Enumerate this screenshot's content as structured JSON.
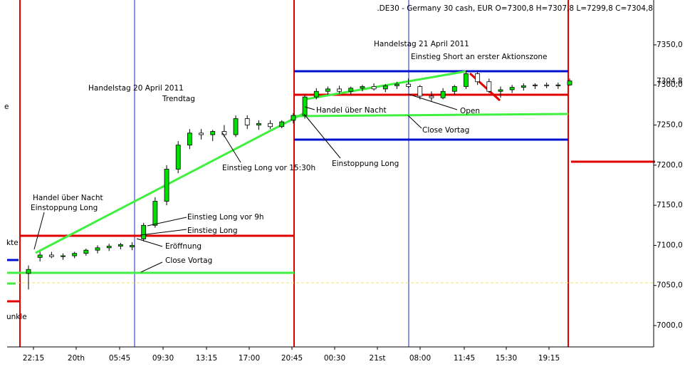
{
  "chart_data": {
    "type": "candlestick",
    "title": ".DE30 - Germany 30 cash, EUR O=7300,8 H=7307,8 L=7299,8 C=7304,8",
    "ylim": [
      6973.4,
      7405.9
    ],
    "yticks": [
      {
        "value": 7000,
        "label": "7000,0"
      },
      {
        "value": 7050,
        "label": "7050,0"
      },
      {
        "value": 7100,
        "label": "7100,0"
      },
      {
        "value": 7150,
        "label": "7150,0"
      },
      {
        "value": 7200,
        "label": "7200,0"
      },
      {
        "value": 7250,
        "label": "7250,0"
      },
      {
        "value": 7300,
        "label": "7300,0"
      },
      {
        "value": 7350,
        "label": "7350,0"
      }
    ],
    "last_price": {
      "value": 7304.8,
      "label": "7304,8"
    },
    "xtick_labels": [
      "22:15",
      "20th",
      "05:45",
      "09:30",
      "13:15",
      "17:00",
      "20:45",
      "00:30",
      "21st",
      "08:00",
      "11:45",
      "15:30",
      "19:15"
    ],
    "up_color": "#00e000",
    "down_color": "#ffffff",
    "candles": [
      [
        7065,
        7075,
        7045,
        7070
      ],
      [
        7085,
        7092,
        7080,
        7088
      ],
      [
        7088,
        7092,
        7084,
        7086
      ],
      [
        7086,
        7090,
        7082,
        7087
      ],
      [
        7087,
        7092,
        7084,
        7090
      ],
      [
        7090,
        7096,
        7087,
        7094
      ],
      [
        7094,
        7100,
        7090,
        7097
      ],
      [
        7097,
        7102,
        7093,
        7099
      ],
      [
        7099,
        7103,
        7095,
        7101
      ],
      [
        7098,
        7104,
        7094,
        7100
      ],
      [
        7108,
        7128,
        7105,
        7125
      ],
      [
        7125,
        7160,
        7122,
        7155
      ],
      [
        7155,
        7200,
        7150,
        7195
      ],
      [
        7195,
        7230,
        7190,
        7225
      ],
      [
        7225,
        7245,
        7220,
        7240
      ],
      [
        7240,
        7245,
        7232,
        7238
      ],
      [
        7238,
        7244,
        7230,
        7242
      ],
      [
        7242,
        7250,
        7235,
        7238
      ],
      [
        7238,
        7262,
        7235,
        7258
      ],
      [
        7258,
        7262,
        7245,
        7250
      ],
      [
        7250,
        7256,
        7244,
        7252
      ],
      [
        7252,
        7256,
        7245,
        7248
      ],
      [
        7248,
        7256,
        7246,
        7254
      ],
      [
        7256,
        7265,
        7252,
        7262
      ],
      [
        7262,
        7288,
        7258,
        7285
      ],
      [
        7285,
        7296,
        7282,
        7292
      ],
      [
        7292,
        7298,
        7288,
        7295
      ],
      [
        7295,
        7299,
        7289,
        7292
      ],
      [
        7292,
        7298,
        7288,
        7296
      ],
      [
        7296,
        7300,
        7292,
        7298
      ],
      [
        7298,
        7302,
        7293,
        7295
      ],
      [
        7295,
        7301,
        7291,
        7299
      ],
      [
        7299,
        7304,
        7295,
        7301
      ],
      [
        7301,
        7308,
        7296,
        7298
      ],
      [
        7298,
        7300,
        7282,
        7286
      ],
      [
        7286,
        7292,
        7280,
        7284
      ],
      [
        7284,
        7296,
        7282,
        7292
      ],
      [
        7292,
        7300,
        7288,
        7298
      ],
      [
        7298,
        7318,
        7295,
        7314
      ],
      [
        7314,
        7316,
        7300,
        7304
      ],
      [
        7304,
        7308,
        7290,
        7292
      ],
      [
        7292,
        7298,
        7284,
        7294
      ],
      [
        7294,
        7300,
        7290,
        7297
      ],
      [
        7297,
        7302,
        7293,
        7299
      ],
      [
        7299,
        7302,
        7295,
        7300
      ],
      [
        7300,
        7303,
        7296,
        7299
      ],
      [
        7299,
        7303,
        7295,
        7300
      ],
      [
        7300,
        7308,
        7299,
        7305
      ]
    ],
    "annotations": [
      "Handelstag 20 April 2011",
      "Trendtag",
      "Einstieg Long vor 15:30h",
      "Handel über Nacht",
      "Einstoppung Long",
      "Handelstag 21 April 2011",
      "Einstieg Short an erster Aktionszone",
      "Open",
      "Close Vortag",
      "Handel über Nacht",
      "Einstoppung Long",
      "Einstieg Long vor 9h",
      "Einstieg Long",
      "Eröffnung",
      "Close Vortag",
      "e",
      "kte",
      "unkle"
    ]
  }
}
